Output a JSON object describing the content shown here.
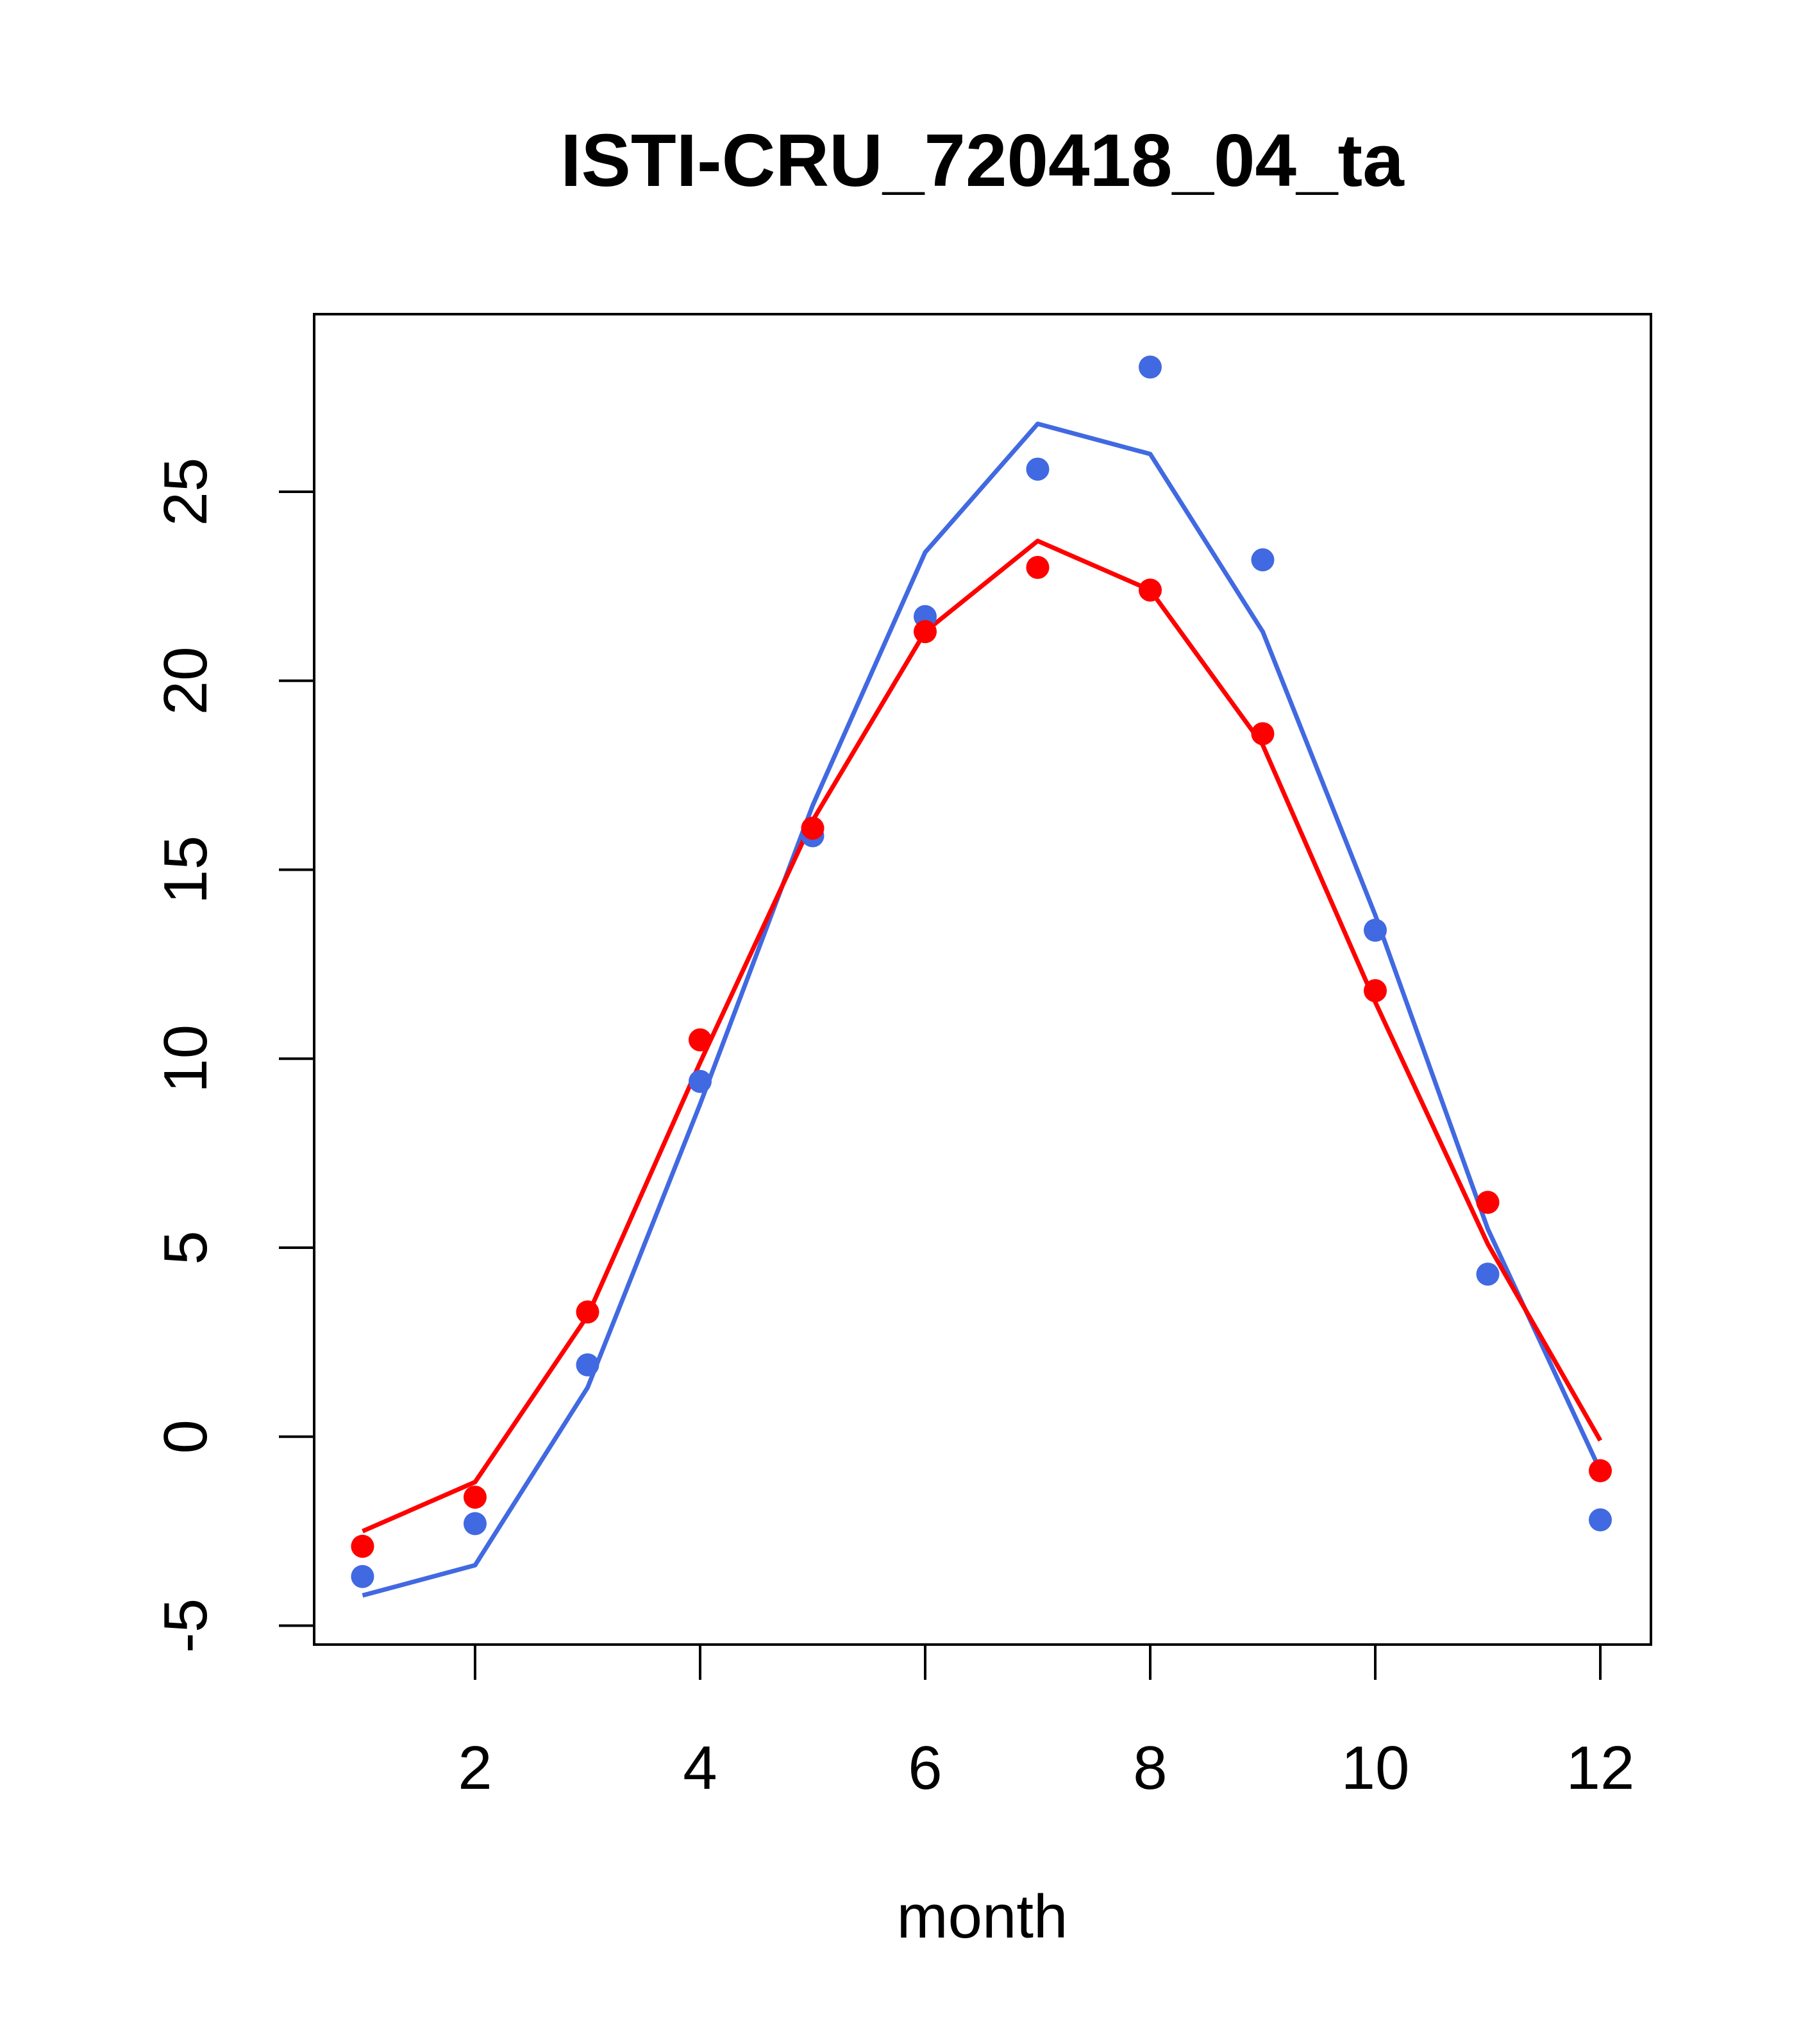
{
  "chart_data": {
    "type": "line",
    "title": "ISTI-CRU_720418_04_ta",
    "xlabel": "month",
    "ylabel": "",
    "xlim": [
      0.57,
      12.45
    ],
    "ylim": [
      -5.5,
      29.7
    ],
    "x_ticks": [
      "2",
      "4",
      "6",
      "8",
      "10",
      "12"
    ],
    "y_ticks": [
      "-5",
      "0",
      "5",
      "10",
      "15",
      "20",
      "25"
    ],
    "x": [
      1,
      2,
      3,
      4,
      5,
      6,
      7,
      8,
      9,
      10,
      11,
      12
    ],
    "series": [
      {
        "color": "#4169E1",
        "points": [
          -3.7,
          -2.3,
          1.9,
          9.4,
          15.9,
          21.7,
          25.6,
          28.3,
          23.2,
          13.4,
          4.3,
          -2.2
        ],
        "line": [
          -4.2,
          -3.4,
          1.3,
          8.8,
          16.7,
          23.4,
          26.8,
          26.0,
          21.3,
          13.8,
          5.5,
          -0.9
        ]
      },
      {
        "color": "#FF0000",
        "points": [
          -2.9,
          -1.6,
          3.3,
          10.5,
          16.1,
          21.3,
          23.0,
          22.4,
          18.6,
          11.8,
          6.2,
          -0.9
        ],
        "line": [
          -2.5,
          -1.2,
          3.2,
          9.9,
          16.3,
          21.3,
          23.7,
          22.4,
          18.3,
          11.5,
          5.1,
          -0.1
        ]
      }
    ]
  }
}
